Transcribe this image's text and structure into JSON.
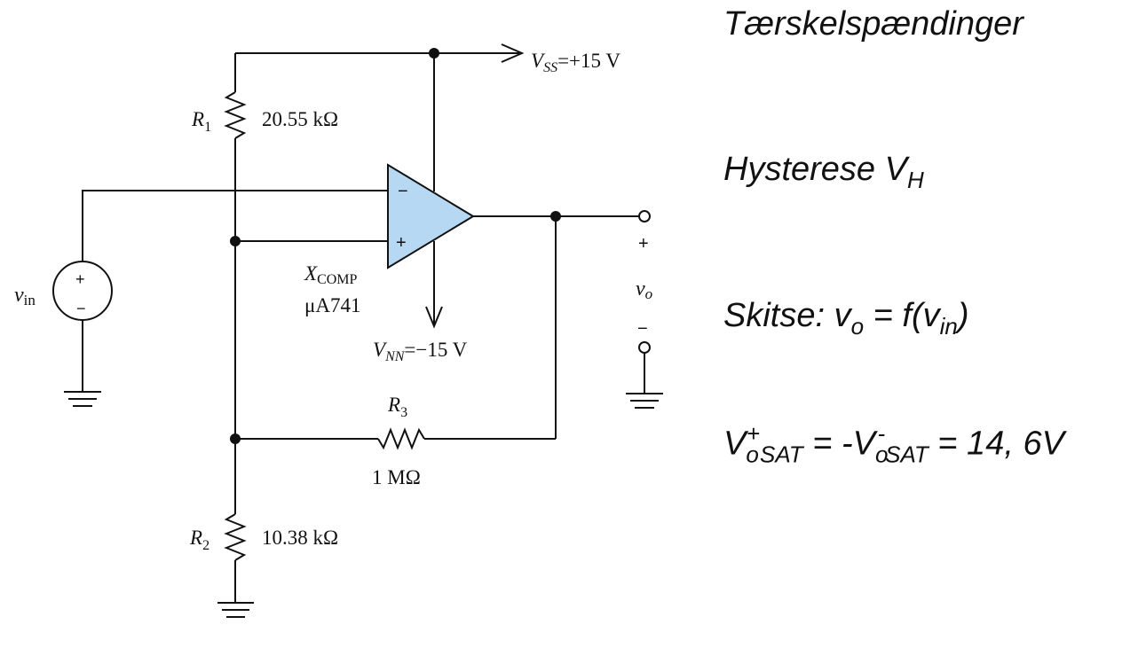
{
  "circuit": {
    "vss_label": {
      "main": "V",
      "sub": "SS",
      "rest": "=+15 V"
    },
    "vnn_label": {
      "main": "V",
      "sub": "NN",
      "rest": "=−15 V"
    },
    "r1": {
      "name": "R",
      "index": "1",
      "value": "20.55 kΩ"
    },
    "r2": {
      "name": "R",
      "index": "2",
      "value": "10.38 kΩ"
    },
    "r3": {
      "name": "R",
      "index": "3",
      "value": "1 MΩ"
    },
    "opamp": {
      "name_main": "X",
      "name_sub": "COMP",
      "model": "μA741",
      "inv": "−",
      "noninv": "+"
    },
    "source": {
      "name": "v",
      "sub": "in",
      "plus": "+",
      "minus": "−"
    },
    "output": {
      "name": "v",
      "sub": "o",
      "plus": "+",
      "minus": "−"
    }
  },
  "notes": {
    "line1": "Tærskelspændinger",
    "line2_main": "Hysterese V",
    "line2_sub": "H",
    "line3_pre": "Skitse: v",
    "line3_sub1": "o",
    "line3_mid": " = f(v",
    "line3_sub2": "in",
    "line3_post": ")",
    "line4_a": "V",
    "line4_a_sup": "+",
    "line4_a_sub": "o",
    "line4_a_sub2": "SAT",
    "line4_mid": " = -V",
    "line4_b_sub": "o",
    "line4_b_sup": "-",
    "line4_b_sub2": "SAT",
    "line4_end": " = 14, 6V"
  },
  "colors": {
    "opamp_fill": "#b7d8f2",
    "wire": "#111111",
    "border": "#d0d0d0"
  }
}
